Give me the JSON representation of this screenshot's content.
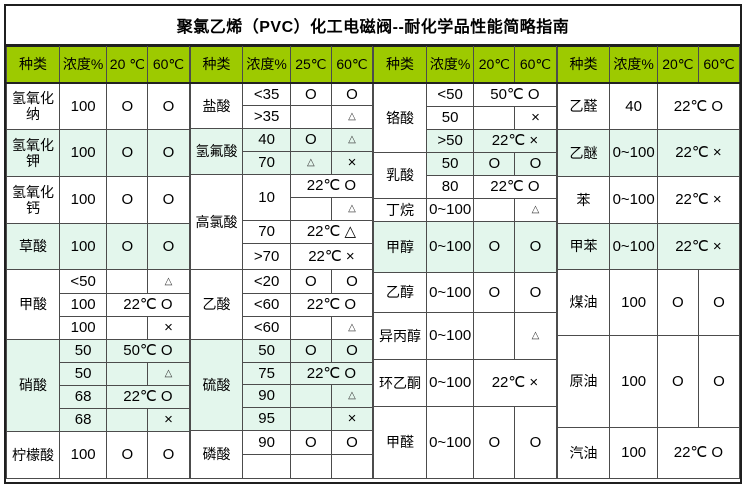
{
  "title": "聚氯乙烯（PVC）化工电磁阀--耐化学品性能简略指南",
  "colors": {
    "header_bg": "#9dca00",
    "alt_row_bg": "#e3f6ec",
    "grid_border": "#4c4c4c",
    "outer_border": "#1f1f1f"
  },
  "rating_symbols": {
    "good": "O",
    "caution": "△",
    "fail": "×"
  },
  "groups": [
    {
      "headers": [
        "种类",
        "浓度%",
        "20 ℃",
        "60℃"
      ],
      "chemicals": [
        {
          "name": "氢氧化纳",
          "alt": false,
          "rows": [
            {
              "h": 47,
              "cells": [
                {
                  "t": "100"
                },
                {
                  "t": "O"
                },
                {
                  "t": "O"
                }
              ]
            }
          ]
        },
        {
          "name": "氢氧化钾",
          "alt": true,
          "rows": [
            {
              "h": 47,
              "cells": [
                {
                  "t": "100"
                },
                {
                  "t": "O"
                },
                {
                  "t": "O"
                }
              ]
            }
          ]
        },
        {
          "name": "氢氧化钙",
          "alt": false,
          "rows": [
            {
              "h": 47,
              "cells": [
                {
                  "t": "100"
                },
                {
                  "t": "O"
                },
                {
                  "t": "O"
                }
              ]
            }
          ]
        },
        {
          "name": "草酸",
          "alt": true,
          "rows": [
            {
              "h": 46,
              "cells": [
                {
                  "t": "100"
                },
                {
                  "t": "O"
                },
                {
                  "t": "O"
                }
              ]
            }
          ]
        },
        {
          "name": "甲酸",
          "alt": false,
          "rows": [
            {
              "h": 24,
              "cells": [
                {
                  "t": "<50"
                },
                {
                  "t": ""
                },
                {
                  "t": "△"
                }
              ]
            },
            {
              "h": 23,
              "cells": [
                {
                  "t": "100"
                },
                {
                  "t": "22℃  O",
                  "span": 2
                }
              ]
            },
            {
              "h": 23,
              "cells": [
                {
                  "t": "100"
                },
                {
                  "t": ""
                },
                {
                  "t": "×"
                }
              ]
            }
          ]
        },
        {
          "name": "硝酸",
          "alt": true,
          "rows": [
            {
              "h": 23,
              "cells": [
                {
                  "t": "50"
                },
                {
                  "t": "50℃  O",
                  "span": 2
                }
              ]
            },
            {
              "h": 23,
              "cells": [
                {
                  "t": "50"
                },
                {
                  "t": ""
                },
                {
                  "t": "△"
                }
              ]
            },
            {
              "h": 23,
              "cells": [
                {
                  "t": "68"
                },
                {
                  "t": "22℃  O",
                  "span": 2
                }
              ]
            },
            {
              "h": 23,
              "cells": [
                {
                  "t": "68"
                },
                {
                  "t": ""
                },
                {
                  "t": "×"
                }
              ]
            }
          ]
        },
        {
          "name": "柠檬酸",
          "alt": false,
          "rows": [
            {
              "h": 47,
              "cells": [
                {
                  "t": "100"
                },
                {
                  "t": "O"
                },
                {
                  "t": "O"
                }
              ]
            }
          ]
        }
      ]
    },
    {
      "headers": [
        "种类",
        "浓度%",
        "25℃",
        "60℃"
      ],
      "chemicals": [
        {
          "name": "盐酸",
          "alt": false,
          "rows": [
            {
              "h": 23,
              "cells": [
                {
                  "t": "<35"
                },
                {
                  "t": "O"
                },
                {
                  "t": "O"
                }
              ]
            },
            {
              "h": 23,
              "cells": [
                {
                  "t": ">35"
                },
                {
                  "t": ""
                },
                {
                  "t": "△"
                }
              ]
            }
          ]
        },
        {
          "name": "氢氟酸",
          "alt": true,
          "rows": [
            {
              "h": 23,
              "cells": [
                {
                  "t": "40"
                },
                {
                  "t": "O"
                },
                {
                  "t": "△"
                }
              ]
            },
            {
              "h": 23,
              "cells": [
                {
                  "t": "70"
                },
                {
                  "t": "△"
                },
                {
                  "t": "×"
                }
              ]
            }
          ]
        },
        {
          "name": "高氯酸",
          "alt": false,
          "rows": [
            {
              "h": 23,
              "cells": [
                {
                  "t": "10",
                  "rspan": 2
                },
                {
                  "t": "22℃  O",
                  "span": 2
                }
              ]
            },
            {
              "h": 23,
              "cells": [
                {
                  "t": ""
                },
                {
                  "t": "△"
                }
              ]
            },
            {
              "h": 23,
              "cells": [
                {
                  "t": "70"
                },
                {
                  "t": "22℃ △",
                  "span": 2
                }
              ]
            },
            {
              "h": 26,
              "cells": [
                {
                  "t": ">70"
                },
                {
                  "t": "22℃ ×",
                  "span": 2
                }
              ]
            }
          ]
        },
        {
          "name": "乙酸",
          "alt": false,
          "rows": [
            {
              "h": 24,
              "cells": [
                {
                  "t": "<20"
                },
                {
                  "t": "O"
                },
                {
                  "t": "O"
                }
              ]
            },
            {
              "h": 23,
              "cells": [
                {
                  "t": "<60"
                },
                {
                  "t": "22℃  O",
                  "span": 2
                }
              ]
            },
            {
              "h": 23,
              "cells": [
                {
                  "t": "<60"
                },
                {
                  "t": ""
                },
                {
                  "t": "△"
                }
              ]
            }
          ]
        },
        {
          "name": "硫酸",
          "alt": true,
          "rows": [
            {
              "h": 23,
              "cells": [
                {
                  "t": "50"
                },
                {
                  "t": "O"
                },
                {
                  "t": "O"
                }
              ]
            },
            {
              "h": 22,
              "cells": [
                {
                  "t": "75"
                },
                {
                  "t": "22℃  O",
                  "span": 2
                }
              ]
            },
            {
              "h": 23,
              "cells": [
                {
                  "t": "90"
                },
                {
                  "t": ""
                },
                {
                  "t": "△"
                }
              ]
            },
            {
              "h": 23,
              "cells": [
                {
                  "t": "95"
                },
                {
                  "t": ""
                },
                {
                  "t": "×"
                }
              ]
            }
          ]
        },
        {
          "name": "磷酸",
          "alt": false,
          "rows": [
            {
              "h": 24,
              "cells": [
                {
                  "t": "90"
                },
                {
                  "t": "O"
                },
                {
                  "t": "O"
                }
              ]
            },
            {
              "h": 24,
              "cells": [
                {
                  "t": ""
                },
                {
                  "t": ""
                },
                {
                  "t": ""
                }
              ]
            }
          ]
        }
      ]
    },
    {
      "headers": [
        "种类",
        "浓度%",
        "20℃",
        "60℃"
      ],
      "chemicals": [
        {
          "name": "铬酸",
          "alt": false,
          "rows": [
            {
              "h": 24,
              "cells": [
                {
                  "t": "<50"
                },
                {
                  "t": "50℃  O",
                  "span": 2
                }
              ]
            },
            {
              "h": 23,
              "cells": [
                {
                  "t": "50"
                },
                {
                  "t": ""
                },
                {
                  "t": "×"
                }
              ]
            },
            {
              "h": 23,
              "alt": true,
              "cells": [
                {
                  "t": ">50"
                },
                {
                  "t": "22℃ ×",
                  "span": 2
                }
              ]
            }
          ]
        },
        {
          "name": "乳酸",
          "alt": false,
          "rows": [
            {
              "h": 23,
              "alt": true,
              "cells": [
                {
                  "t": "50"
                },
                {
                  "t": "O"
                },
                {
                  "t": "O"
                }
              ]
            },
            {
              "h": 23,
              "cells": [
                {
                  "t": "80"
                },
                {
                  "t": "22℃  O",
                  "span": 2
                }
              ]
            }
          ]
        },
        {
          "name": "丁烷",
          "alt": false,
          "rows": [
            {
              "h": 23,
              "cells": [
                {
                  "t": "0~100"
                },
                {
                  "t": ""
                },
                {
                  "t": "△"
                }
              ]
            }
          ]
        },
        {
          "name": "甲醇",
          "alt": true,
          "rows": [
            {
              "h": 51,
              "cells": [
                {
                  "t": "0~100"
                },
                {
                  "t": "O"
                },
                {
                  "t": "O"
                }
              ]
            }
          ]
        },
        {
          "name": "乙醇",
          "alt": false,
          "rows": [
            {
              "h": 40,
              "cells": [
                {
                  "t": "0~100"
                },
                {
                  "t": "O"
                },
                {
                  "t": "O"
                }
              ]
            }
          ]
        },
        {
          "name": "异丙醇",
          "alt": false,
          "rows": [
            {
              "h": 47,
              "cells": [
                {
                  "t": "0~100"
                },
                {
                  "t": ""
                },
                {
                  "t": "△"
                }
              ]
            }
          ]
        },
        {
          "name": "环乙酮",
          "alt": false,
          "rows": [
            {
              "h": 47,
              "cells": [
                {
                  "t": "0~100"
                },
                {
                  "t": "22℃ ×",
                  "span": 2
                }
              ]
            }
          ]
        },
        {
          "name": "甲醛",
          "alt": false,
          "rows": [
            {
              "h": 72,
              "cells": [
                {
                  "t": "0~100"
                },
                {
                  "t": "O"
                },
                {
                  "t": "O"
                }
              ]
            }
          ]
        }
      ]
    },
    {
      "headers": [
        "种类",
        "浓度%",
        "20℃",
        "60℃"
      ],
      "chemicals": [
        {
          "name": "乙醛",
          "alt": false,
          "rows": [
            {
              "h": 47,
              "cells": [
                {
                  "t": "40"
                },
                {
                  "t": "22℃  O",
                  "span": 2
                }
              ]
            }
          ]
        },
        {
          "name": "乙醚",
          "alt": true,
          "rows": [
            {
              "h": 47,
              "cells": [
                {
                  "t": "0~100"
                },
                {
                  "t": "22℃ ×",
                  "span": 2
                }
              ]
            }
          ]
        },
        {
          "name": "苯",
          "alt": false,
          "rows": [
            {
              "h": 47,
              "cells": [
                {
                  "t": "0~100"
                },
                {
                  "t": "22℃ ×",
                  "span": 2
                }
              ]
            }
          ]
        },
        {
          "name": "甲苯",
          "alt": true,
          "rows": [
            {
              "h": 46,
              "cells": [
                {
                  "t": "0~100"
                },
                {
                  "t": "22℃ ×",
                  "span": 2
                }
              ]
            }
          ]
        },
        {
          "name": "煤油",
          "alt": false,
          "rows": [
            {
              "h": 66,
              "cells": [
                {
                  "t": "100"
                },
                {
                  "t": "O"
                },
                {
                  "t": "O"
                }
              ]
            }
          ]
        },
        {
          "name": "原油",
          "alt": false,
          "rows": [
            {
              "h": 92,
              "cells": [
                {
                  "t": "100"
                },
                {
                  "t": "O"
                },
                {
                  "t": "O"
                }
              ]
            }
          ]
        },
        {
          "name": "汽油",
          "alt": false,
          "rows": [
            {
              "h": 51,
              "cells": [
                {
                  "t": "100"
                },
                {
                  "t": "22℃  O",
                  "span": 2
                }
              ]
            }
          ]
        }
      ]
    }
  ]
}
